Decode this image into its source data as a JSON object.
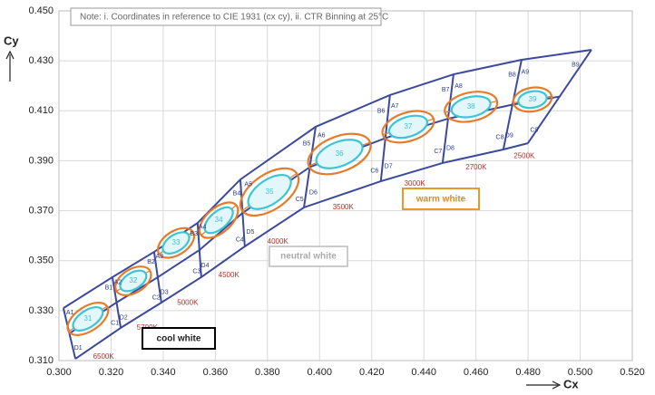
{
  "chart_data": {
    "type": "binning",
    "note": "Note: i. Coordinates in reference to CIE 1931 (cx cy), ii. CTR Binning at 25°C",
    "x_label": "Cx",
    "y_label": "Cy",
    "xlim": [
      0.3,
      0.52
    ],
    "ylim": [
      0.31,
      0.45
    ],
    "xticks": [
      {
        "value": 0.3,
        "label": "0.300"
      },
      {
        "value": 0.32,
        "label": "0.320"
      },
      {
        "value": 0.34,
        "label": "0.340"
      },
      {
        "value": 0.36,
        "label": "0.360"
      },
      {
        "value": 0.38,
        "label": "0.380"
      },
      {
        "value": 0.4,
        "label": "0.400"
      },
      {
        "value": 0.42,
        "label": "0.420"
      },
      {
        "value": 0.44,
        "label": "0.440"
      },
      {
        "value": 0.46,
        "label": "0.460"
      },
      {
        "value": 0.48,
        "label": "0.480"
      },
      {
        "value": 0.5,
        "label": "0.500"
      },
      {
        "value": 0.52,
        "label": "0.520"
      }
    ],
    "yticks": [
      {
        "value": 0.31,
        "label": "0.310"
      },
      {
        "value": 0.33,
        "label": "0.330"
      },
      {
        "value": 0.35,
        "label": "0.350"
      },
      {
        "value": 0.37,
        "label": "0.370"
      },
      {
        "value": 0.39,
        "label": "0.390"
      },
      {
        "value": 0.41,
        "label": "0.410"
      },
      {
        "value": 0.43,
        "label": "0.430"
      },
      {
        "value": 0.45,
        "label": "0.450"
      }
    ],
    "grid": true,
    "edges": [
      {
        "top": [
          0.3017,
          0.331
        ],
        "bottom": [
          0.3063,
          0.3107
        ]
      },
      {
        "top": [
          0.3205,
          0.3434
        ],
        "bottom": [
          0.3237,
          0.3231
        ]
      },
      {
        "top": [
          0.3365,
          0.3535
        ],
        "bottom": [
          0.3393,
          0.3332
        ]
      },
      {
        "top": [
          0.3532,
          0.3651
        ],
        "bottom": [
          0.3546,
          0.3434
        ]
      },
      {
        "top": [
          0.3696,
          0.3825
        ],
        "bottom": [
          0.3713,
          0.3557
        ]
      },
      {
        "top": [
          0.3985,
          0.4036
        ],
        "bottom": [
          0.394,
          0.3713
        ]
      },
      {
        "top": [
          0.427,
          0.4163
        ],
        "bottom": [
          0.4235,
          0.3818
        ]
      },
      {
        "top": [
          0.4514,
          0.4246
        ],
        "bottom": [
          0.4472,
          0.3891
        ]
      },
      {
        "top": [
          0.4775,
          0.4304
        ],
        "bottom": [
          0.4705,
          0.3945
        ]
      },
      {
        "top": [
          0.5043,
          0.4344
        ],
        "bottom": [
          0.4799,
          0.397
        ]
      }
    ],
    "bins": [
      {
        "label": "31",
        "center": [
          0.3111,
          0.3267
        ],
        "cct": "6500K",
        "corners": [
          "A1",
          "B1",
          "C1",
          "D1"
        ]
      },
      {
        "label": "32",
        "center": [
          0.3285,
          0.3419
        ],
        "cct": "5700K",
        "corners": [
          "A2",
          "B2",
          "C2",
          "D2"
        ]
      },
      {
        "label": "33",
        "center": [
          0.3449,
          0.3571
        ],
        "cct": "5000K",
        "corners": [
          "A3",
          "B3",
          "C3",
          "D3"
        ]
      },
      {
        "label": "34",
        "center": [
          0.3613,
          0.3662
        ],
        "cct": "4500K",
        "corners": [
          "A4",
          "B4",
          "C4",
          "D4"
        ]
      },
      {
        "label": "35",
        "center": [
          0.3808,
          0.3775
        ],
        "cct": "4000K",
        "corners": [
          "A5",
          "B5",
          "C5",
          "D5"
        ]
      },
      {
        "label": "36",
        "center": [
          0.4076,
          0.3927
        ],
        "cct": "3500K",
        "corners": [
          "A6",
          "B6",
          "C6",
          "D6"
        ]
      },
      {
        "label": "37",
        "center": [
          0.434,
          0.4036
        ],
        "cct": "3000K",
        "corners": [
          "A7",
          "B7",
          "C7",
          "D7"
        ]
      },
      {
        "label": "38",
        "center": [
          0.4581,
          0.4116
        ],
        "cct": "2700K",
        "corners": [
          "A8",
          "B8",
          "C8",
          "D8"
        ]
      },
      {
        "label": "39",
        "center": [
          0.4817,
          0.4145
        ],
        "cct": "2500K",
        "corners": [
          "A9",
          "B9",
          "C9",
          "D9"
        ]
      }
    ],
    "regions": {
      "cool": "cool white",
      "neutral": "neutral white",
      "warm": "warm white"
    },
    "colors": {
      "bin": "#3b4a9c",
      "ring": "#e57b2a",
      "ellipse": "#3cc4d6",
      "ellipse_fill": "#e3f7fa"
    }
  }
}
